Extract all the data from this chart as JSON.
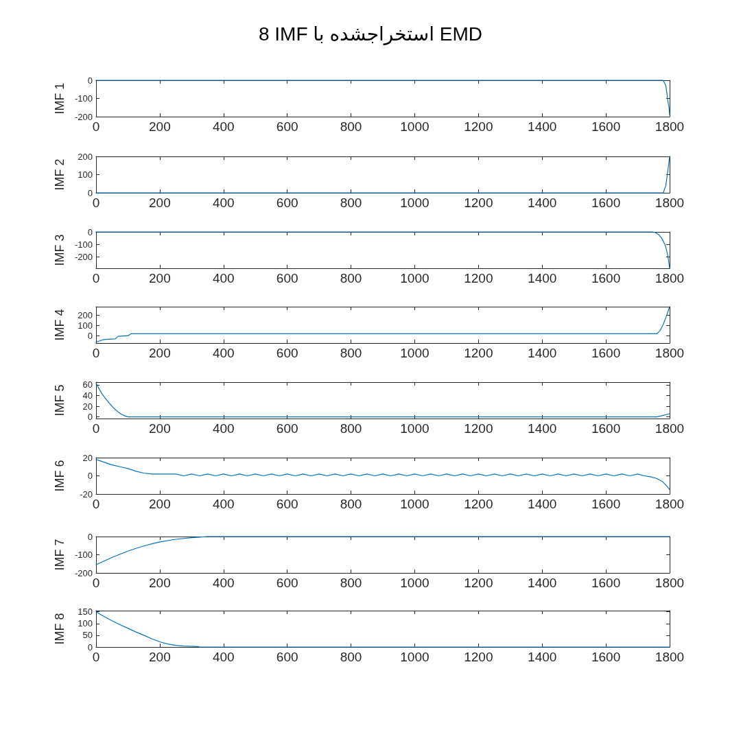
{
  "chart_data": [
    {
      "type": "line",
      "title": "8 IMF استخراجشده با EMD",
      "ylabel": "IMF 1",
      "color": "#0072bd",
      "x": [
        0,
        1780,
        1788,
        1792,
        1795,
        1798,
        1800
      ],
      "values": [
        0,
        0,
        -30,
        -80,
        -120,
        -150,
        -190
      ],
      "xlim": [
        0,
        1800
      ],
      "xticks": [
        0,
        200,
        400,
        600,
        800,
        1000,
        1200,
        1400,
        1600,
        1800
      ],
      "ylim": [
        -200,
        0
      ],
      "yticks": [
        -200,
        -100,
        0
      ]
    },
    {
      "type": "line",
      "ylabel": "IMF 2",
      "color": "#0072bd",
      "x": [
        0,
        1780,
        1788,
        1792,
        1795,
        1798,
        1800
      ],
      "values": [
        0,
        0,
        40,
        90,
        130,
        170,
        200
      ],
      "xlim": [
        0,
        1800
      ],
      "xticks": [
        0,
        200,
        400,
        600,
        800,
        1000,
        1200,
        1400,
        1600,
        1800
      ],
      "ylim": [
        0,
        200
      ],
      "yticks": [
        0,
        100,
        200
      ]
    },
    {
      "type": "line",
      "ylabel": "IMF 3",
      "color": "#0072bd",
      "x": [
        0,
        1745,
        1755,
        1765,
        1775,
        1785,
        1790,
        1795,
        1800
      ],
      "values": [
        0,
        0,
        -5,
        -20,
        -50,
        -100,
        -140,
        -200,
        -290
      ],
      "xlim": [
        0,
        1800
      ],
      "xticks": [
        0,
        200,
        400,
        600,
        800,
        1000,
        1200,
        1400,
        1600,
        1800
      ],
      "ylim": [
        -290,
        0
      ],
      "yticks": [
        -200,
        -100,
        0
      ]
    },
    {
      "type": "line",
      "ylabel": "IMF 4",
      "color": "#0072bd",
      "x": [
        0,
        10,
        20,
        30,
        60,
        70,
        100,
        110,
        1760,
        1770,
        1780,
        1790,
        1800
      ],
      "values": [
        -60,
        -50,
        -40,
        -35,
        -30,
        -5,
        0,
        20,
        20,
        50,
        110,
        190,
        280
      ],
      "xlim": [
        0,
        1800
      ],
      "xticks": [
        0,
        200,
        400,
        600,
        800,
        1000,
        1200,
        1400,
        1600,
        1800
      ],
      "ylim": [
        -70,
        280
      ],
      "yticks": [
        0,
        100,
        200
      ]
    },
    {
      "type": "line",
      "ylabel": "IMF 5",
      "color": "#0072bd",
      "x": [
        0,
        10,
        20,
        30,
        40,
        50,
        60,
        70,
        80,
        90,
        100,
        1760,
        1780,
        1800
      ],
      "values": [
        63,
        52,
        42,
        34,
        27,
        20,
        14,
        9,
        5,
        2,
        0,
        0,
        3,
        6
      ],
      "xlim": [
        0,
        1800
      ],
      "xticks": [
        0,
        200,
        400,
        600,
        800,
        1000,
        1200,
        1400,
        1600,
        1800
      ],
      "ylim": [
        -3,
        65
      ],
      "yticks": [
        0,
        20,
        40,
        60
      ]
    },
    {
      "type": "line",
      "ylabel": "IMF 6",
      "color": "#0072bd",
      "x": [
        0,
        25,
        50,
        75,
        100,
        125,
        150,
        175,
        250,
        275,
        300,
        325,
        350,
        375,
        400,
        425,
        450,
        475,
        500,
        525,
        550,
        575,
        600,
        625,
        650,
        675,
        700,
        725,
        750,
        775,
        800,
        825,
        850,
        875,
        900,
        925,
        950,
        975,
        1000,
        1025,
        1050,
        1075,
        1100,
        1125,
        1150,
        1175,
        1200,
        1225,
        1250,
        1275,
        1300,
        1325,
        1350,
        1375,
        1400,
        1425,
        1450,
        1475,
        1500,
        1525,
        1550,
        1575,
        1600,
        1625,
        1650,
        1675,
        1700,
        1720,
        1740,
        1760,
        1780,
        1800
      ],
      "values": [
        18,
        15,
        12,
        10,
        8,
        5,
        3,
        2,
        2,
        0,
        2,
        0,
        2,
        0,
        2,
        0,
        2,
        0,
        2,
        0,
        2,
        0,
        2,
        0,
        2,
        0,
        2,
        0,
        2,
        0,
        2,
        0,
        2,
        0,
        2,
        0,
        2,
        0,
        2,
        0,
        2,
        0,
        2,
        0,
        2,
        0,
        2,
        0,
        2,
        0,
        2,
        0,
        2,
        0,
        2,
        0,
        2,
        0,
        2,
        0,
        2,
        0,
        2,
        0,
        2,
        0,
        2,
        0,
        -1,
        -3,
        -7,
        -15
      ],
      "xlim": [
        0,
        1800
      ],
      "xticks": [
        0,
        200,
        400,
        600,
        800,
        1000,
        1200,
        1400,
        1600,
        1800
      ],
      "ylim": [
        -20,
        20
      ],
      "yticks": [
        -20,
        0,
        20
      ]
    },
    {
      "type": "line",
      "ylabel": "IMF 7",
      "color": "#0072bd",
      "x": [
        0,
        25,
        50,
        75,
        100,
        125,
        150,
        175,
        200,
        250,
        300,
        325,
        350,
        1800
      ],
      "values": [
        -155,
        -135,
        -115,
        -97,
        -80,
        -65,
        -52,
        -40,
        -30,
        -15,
        -6,
        -3,
        0,
        0
      ],
      "xlim": [
        0,
        1800
      ],
      "xticks": [
        0,
        200,
        400,
        600,
        800,
        1000,
        1200,
        1400,
        1600,
        1800
      ],
      "ylim": [
        -200,
        0
      ],
      "yticks": [
        -200,
        -100,
        0
      ]
    },
    {
      "type": "line",
      "ylabel": "IMF 8",
      "color": "#0072bd",
      "x": [
        0,
        25,
        50,
        75,
        100,
        125,
        150,
        175,
        200,
        225,
        250,
        275,
        320,
        325,
        1800
      ],
      "values": [
        150,
        130,
        112,
        95,
        80,
        64,
        50,
        35,
        22,
        13,
        7,
        4,
        2,
        0,
        0
      ],
      "xlim": [
        0,
        1800
      ],
      "xticks": [
        0,
        200,
        400,
        600,
        800,
        1000,
        1200,
        1400,
        1600,
        1800
      ],
      "ylim": [
        0,
        155
      ],
      "yticks": [
        0,
        50,
        100,
        150
      ]
    }
  ]
}
